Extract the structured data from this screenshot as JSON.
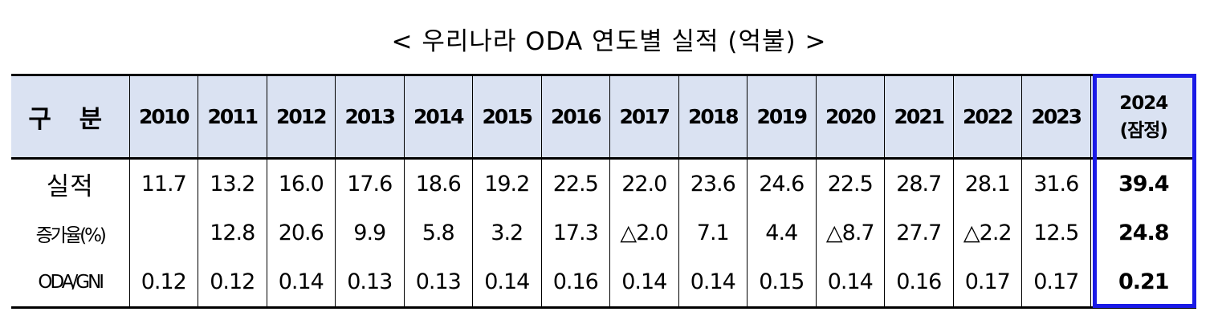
{
  "title": "< 우리나라 ODA 연도별 실적 (억불) >",
  "colors": {
    "header_bg": "#dae2f2",
    "highlight_border": "#1a1ae6"
  },
  "chart_data": {
    "type": "table",
    "title": "< 우리나라 ODA 연도별 실적 (억불) >",
    "header_label": "구 분",
    "years": [
      "2010",
      "2011",
      "2012",
      "2013",
      "2014",
      "2015",
      "2016",
      "2017",
      "2018",
      "2019",
      "2020",
      "2021",
      "2022",
      "2023"
    ],
    "last_year": "2024",
    "last_year_note": "(잠정)",
    "highlighted_column": "2024 (잠정)",
    "rows": [
      {
        "label": "실적",
        "values": [
          "11.7",
          "13.2",
          "16.0",
          "17.6",
          "18.6",
          "19.2",
          "22.5",
          "22.0",
          "23.6",
          "24.6",
          "22.5",
          "28.7",
          "28.1",
          "31.6"
        ],
        "last": "39.4"
      },
      {
        "label": "증가율(%)",
        "values": [
          "",
          "12.8",
          "20.6",
          "9.9",
          "5.8",
          "3.2",
          "17.3",
          "△2.0",
          "7.1",
          "4.4",
          "△8.7",
          "27.7",
          "△2.2",
          "12.5"
        ],
        "last": "24.8"
      },
      {
        "label": "ODA/GNI",
        "values": [
          "0.12",
          "0.12",
          "0.14",
          "0.13",
          "0.13",
          "0.14",
          "0.16",
          "0.14",
          "0.14",
          "0.15",
          "0.14",
          "0.16",
          "0.17",
          "0.17"
        ],
        "last": "0.21"
      }
    ]
  }
}
